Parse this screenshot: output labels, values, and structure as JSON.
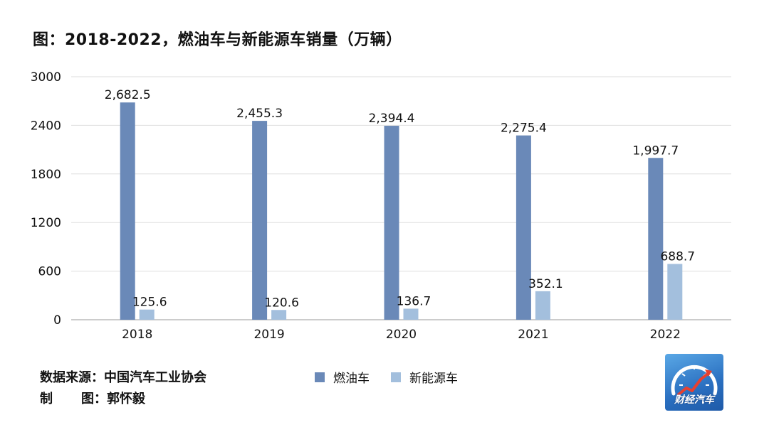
{
  "title": "图：2018-2022，燃油车与新能源车销量（万辆）",
  "source_label": "数据来源：",
  "source_value": "中国汽车工业协会",
  "author_label_1": "制",
  "author_label_2": "图：",
  "author_value": "郭怀毅",
  "logo_text": "财经汽车",
  "colors": {
    "fuel": "#6a89b8",
    "ev": "#a3bfdd",
    "grid": "#dedede",
    "axis": "#9a9a9a"
  },
  "chart_data": {
    "type": "bar",
    "categories": [
      "2018",
      "2019",
      "2020",
      "2021",
      "2022"
    ],
    "series": [
      {
        "name": "燃油车",
        "values": [
          2682.5,
          2455.3,
          2394.4,
          2275.4,
          1997.7
        ],
        "labels": [
          "2,682.5",
          "2,455.3",
          "2,394.4",
          "2,275.4",
          "1,997.7"
        ]
      },
      {
        "name": "新能源车",
        "values": [
          125.6,
          120.6,
          136.7,
          352.1,
          688.7
        ],
        "labels": [
          "125.6",
          "120.6",
          "136.7",
          "352.1",
          "688.7"
        ]
      }
    ],
    "yticks": [
      "0",
      "600",
      "1200",
      "1800",
      "2400",
      "3000"
    ],
    "ylim": [
      0,
      3000
    ],
    "grid": true,
    "legend_position": "bottom-center"
  }
}
